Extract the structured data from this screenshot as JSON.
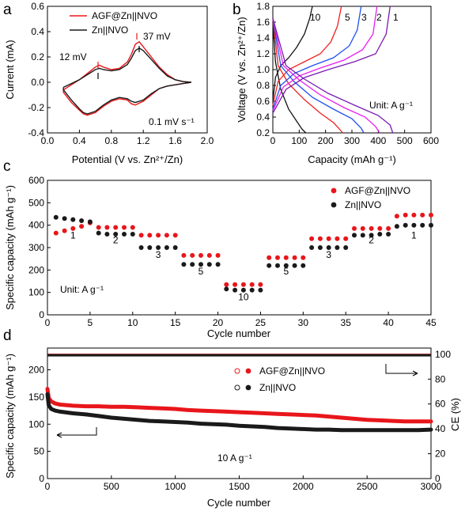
{
  "panels": {
    "a": {
      "letter": "a",
      "xlabel": "Potential (V vs. Zn²⁺/Zn)",
      "ylabel": "Current (mA)",
      "annotations": {
        "left": "12 mV",
        "right": "37 mV",
        "rate": "0.1 mV s⁻¹"
      },
      "legend": [
        "AGF@Zn||NVO",
        "Zn||NVO"
      ]
    },
    "b": {
      "letter": "b",
      "xlabel": "Capacity (mAh g⁻¹)",
      "ylabel": "Voltage (V vs. Zn²⁺/Zn)",
      "unit_note": "Unit: A g⁻¹",
      "rate_labels": [
        "10",
        "5",
        "3",
        "2",
        "1"
      ]
    },
    "c": {
      "letter": "c",
      "xlabel": "Cycle number",
      "ylabel": "Specific capacity (mAh g⁻¹)",
      "unit_note": "Unit: A g⁻¹",
      "legend": [
        "AGF@Zn||NVO",
        "Zn||NVO"
      ],
      "rate_labels": [
        "1",
        "2",
        "3",
        "5",
        "10",
        "5",
        "3",
        "2",
        "1"
      ]
    },
    "d": {
      "letter": "d",
      "xlabel": "Cycle number",
      "ylabel_left": "Specific capacity (mAh g⁻¹)",
      "ylabel_right": "CE (%)",
      "rate_note": "10 A g⁻¹",
      "legend": [
        "AGF@Zn||NVO",
        "Zn||NVO"
      ]
    }
  },
  "colors": {
    "agf": "#e8161b",
    "zn": "#1a1a1a",
    "rate1": "#7a1ab0",
    "rate2": "#e81ef0",
    "rate3": "#2050f0",
    "rate5": "#f02020",
    "rate10": "#111111"
  },
  "chart_data": [
    {
      "id": "a",
      "type": "line",
      "xlim": [
        0,
        2.0
      ],
      "ylim": [
        -0.4,
        0.6
      ],
      "xticks": [
        "0.0",
        "0.4",
        "0.8",
        "1.2",
        "1.6",
        "2.0"
      ],
      "yticks": [
        "-0.4",
        "-0.2",
        "0.0",
        "0.2",
        "0.4",
        "0.6"
      ],
      "series": [
        {
          "name": "AGF@Zn||NVO",
          "color": "#e8161b",
          "x": [
            0.2,
            0.3,
            0.4,
            0.5,
            0.6,
            0.65,
            0.7,
            0.8,
            0.9,
            1.0,
            1.05,
            1.1,
            1.15,
            1.2,
            1.3,
            1.4,
            1.5,
            1.6,
            1.7,
            1.8,
            1.7,
            1.6,
            1.5,
            1.4,
            1.3,
            1.2,
            1.1,
            1.05,
            1.0,
            0.9,
            0.8,
            0.7,
            0.6,
            0.5,
            0.45,
            0.4,
            0.3,
            0.2
          ],
          "y": [
            -0.06,
            -0.02,
            0.02,
            0.07,
            0.12,
            0.135,
            0.12,
            0.1,
            0.11,
            0.16,
            0.22,
            0.3,
            0.32,
            0.28,
            0.2,
            0.12,
            0.06,
            0.02,
            0.005,
            0.0,
            -0.01,
            -0.02,
            -0.03,
            -0.05,
            -0.1,
            -0.15,
            -0.18,
            -0.17,
            -0.14,
            -0.13,
            -0.15,
            -0.19,
            -0.24,
            -0.26,
            -0.25,
            -0.22,
            -0.16,
            -0.08
          ]
        },
        {
          "name": "Zn||NVO",
          "color": "#1a1a1a",
          "x": [
            0.2,
            0.3,
            0.4,
            0.5,
            0.6,
            0.65,
            0.7,
            0.8,
            0.9,
            1.0,
            1.05,
            1.1,
            1.15,
            1.2,
            1.3,
            1.4,
            1.5,
            1.6,
            1.7,
            1.8,
            1.7,
            1.6,
            1.5,
            1.4,
            1.3,
            1.2,
            1.1,
            1.05,
            1.0,
            0.9,
            0.8,
            0.7,
            0.6,
            0.5,
            0.45,
            0.4,
            0.3,
            0.2
          ],
          "y": [
            -0.04,
            -0.01,
            0.02,
            0.06,
            0.1,
            0.11,
            0.1,
            0.09,
            0.1,
            0.14,
            0.19,
            0.25,
            0.27,
            0.25,
            0.18,
            0.11,
            0.05,
            0.02,
            0.005,
            0.0,
            -0.01,
            -0.02,
            -0.03,
            -0.05,
            -0.09,
            -0.14,
            -0.16,
            -0.15,
            -0.13,
            -0.12,
            -0.14,
            -0.18,
            -0.23,
            -0.25,
            -0.24,
            -0.21,
            -0.14,
            -0.06
          ]
        }
      ]
    },
    {
      "id": "b",
      "type": "line",
      "xlim": [
        0,
        600
      ],
      "ylim": [
        0.2,
        1.8
      ],
      "xticks": [
        "0",
        "100",
        "200",
        "300",
        "400",
        "500",
        "600"
      ],
      "yticks": [
        "0.2",
        "0.4",
        "0.6",
        "0.8",
        "1.0",
        "1.2",
        "1.4",
        "1.6",
        "1.8"
      ],
      "series": [
        {
          "name": "10",
          "color": "#111111",
          "charge": {
            "x": [
              0,
              10,
              30,
              60,
              90,
              120,
              140,
              150
            ],
            "y": [
              0.6,
              0.9,
              1.05,
              1.15,
              1.28,
              1.45,
              1.65,
              1.8
            ]
          },
          "discharge": {
            "x": [
              0,
              10,
              30,
              60,
              90,
              110,
              125
            ],
            "y": [
              1.6,
              1.1,
              0.75,
              0.5,
              0.35,
              0.25,
              0.2
            ]
          }
        },
        {
          "name": "5",
          "color": "#f02020",
          "charge": {
            "x": [
              0,
              20,
              60,
              120,
              180,
              220,
              245,
              260
            ],
            "y": [
              0.55,
              0.85,
              1.0,
              1.1,
              1.2,
              1.35,
              1.55,
              1.8
            ]
          },
          "discharge": {
            "x": [
              0,
              20,
              60,
              120,
              180,
              230,
              255,
              265
            ],
            "y": [
              1.65,
              1.05,
              0.82,
              0.62,
              0.45,
              0.33,
              0.24,
              0.2
            ]
          }
        },
        {
          "name": "3",
          "color": "#2050f0",
          "charge": {
            "x": [
              0,
              30,
              80,
              150,
              230,
              290,
              320,
              335
            ],
            "y": [
              0.5,
              0.8,
              0.95,
              1.05,
              1.15,
              1.3,
              1.5,
              1.8
            ]
          },
          "discharge": {
            "x": [
              0,
              30,
              80,
              150,
              230,
              300,
              335,
              345
            ],
            "y": [
              1.65,
              1.05,
              0.85,
              0.65,
              0.5,
              0.38,
              0.26,
              0.2
            ]
          }
        },
        {
          "name": "2",
          "color": "#e81ef0",
          "charge": {
            "x": [
              0,
              40,
              100,
              180,
              270,
              340,
              380,
              395
            ],
            "y": [
              0.48,
              0.78,
              0.92,
              1.02,
              1.12,
              1.25,
              1.45,
              1.8
            ]
          },
          "discharge": {
            "x": [
              0,
              40,
              100,
              180,
              270,
              350,
              390,
              405
            ],
            "y": [
              1.65,
              1.05,
              0.87,
              0.68,
              0.52,
              0.4,
              0.28,
              0.2
            ]
          }
        },
        {
          "name": "1",
          "color": "#7a1ab0",
          "charge": {
            "x": [
              0,
              50,
              120,
              210,
              310,
              390,
              430,
              445
            ],
            "y": [
              0.45,
              0.75,
              0.9,
              1.0,
              1.1,
              1.2,
              1.45,
              1.8
            ]
          },
          "discharge": {
            "x": [
              0,
              50,
              120,
              210,
              310,
              400,
              445,
              455
            ],
            "y": [
              1.65,
              1.05,
              0.88,
              0.7,
              0.55,
              0.42,
              0.3,
              0.2
            ]
          }
        }
      ]
    },
    {
      "id": "c",
      "type": "scatter",
      "xlim": [
        0,
        45
      ],
      "ylim": [
        0,
        600
      ],
      "xticks": [
        "0",
        "5",
        "10",
        "15",
        "20",
        "25",
        "30",
        "35",
        "40",
        "45"
      ],
      "yticks": [
        "0",
        "100",
        "200",
        "300",
        "400",
        "500",
        "600"
      ],
      "x": [
        1,
        2,
        3,
        4,
        5,
        6,
        7,
        8,
        9,
        10,
        11,
        12,
        13,
        14,
        15,
        16,
        17,
        18,
        19,
        20,
        21,
        22,
        23,
        24,
        25,
        26,
        27,
        28,
        29,
        30,
        31,
        32,
        33,
        34,
        35,
        36,
        37,
        38,
        39,
        40,
        41,
        42,
        43,
        44,
        45
      ],
      "series": [
        {
          "name": "AGF@Zn||NVO",
          "color": "#e8161b",
          "values": [
            365,
            375,
            385,
            395,
            410,
            390,
            390,
            390,
            390,
            390,
            355,
            355,
            355,
            355,
            355,
            265,
            265,
            265,
            265,
            265,
            135,
            135,
            135,
            135,
            135,
            255,
            255,
            255,
            255,
            255,
            340,
            340,
            340,
            340,
            340,
            385,
            385,
            385,
            385,
            385,
            440,
            445,
            445,
            445,
            445
          ]
        },
        {
          "name": "Zn||NVO",
          "color": "#1a1a1a",
          "values": [
            435,
            430,
            425,
            420,
            415,
            365,
            360,
            360,
            360,
            360,
            300,
            300,
            300,
            300,
            300,
            225,
            225,
            225,
            225,
            225,
            115,
            110,
            110,
            110,
            110,
            220,
            220,
            220,
            220,
            220,
            300,
            300,
            300,
            300,
            300,
            355,
            355,
            355,
            360,
            360,
            395,
            400,
            400,
            400,
            400
          ]
        }
      ]
    },
    {
      "id": "d",
      "type": "scatter",
      "xlim": [
        0,
        3000
      ],
      "ylim": [
        0,
        240
      ],
      "ylim_right": [
        0,
        105
      ],
      "xticks": [
        "0",
        "500",
        "1000",
        "1500",
        "2000",
        "2500",
        "3000"
      ],
      "yticks": [
        "0",
        "50",
        "100",
        "150",
        "200"
      ],
      "yticks_right": [
        "0",
        "20",
        "40",
        "60",
        "80",
        "100"
      ],
      "x": [
        0,
        10,
        30,
        60,
        100,
        200,
        300,
        400,
        500,
        600,
        700,
        800,
        900,
        1000,
        1100,
        1200,
        1300,
        1400,
        1500,
        1600,
        1700,
        1800,
        1900,
        2000,
        2100,
        2200,
        2300,
        2400,
        2500,
        2600,
        2700,
        2800,
        2900,
        3000
      ],
      "series": [
        {
          "name": "AGF@Zn||NVO",
          "color": "#e8161b",
          "values": [
            165,
            148,
            142,
            138,
            136,
            134,
            133,
            133,
            132,
            132,
            131,
            130,
            129,
            128,
            126,
            125,
            124,
            123,
            122,
            121,
            120,
            119,
            118,
            117,
            116,
            114,
            112,
            110,
            108,
            107,
            106,
            105,
            105,
            105
          ]
        },
        {
          "name": "Zn||NVO",
          "color": "#1a1a1a",
          "values": [
            155,
            135,
            128,
            125,
            123,
            120,
            118,
            115,
            112,
            110,
            108,
            106,
            105,
            104,
            103,
            101,
            100,
            99,
            97,
            96,
            95,
            93,
            92,
            91,
            90,
            90,
            89,
            89,
            89,
            89,
            89,
            89,
            89,
            90
          ]
        }
      ],
      "ce_series": [
        {
          "name": "AGF@Zn||NVO",
          "color": "#e8161b",
          "value": 99.5
        },
        {
          "name": "Zn||NVO",
          "color": "#1a1a1a",
          "value": 99.2
        }
      ]
    }
  ]
}
